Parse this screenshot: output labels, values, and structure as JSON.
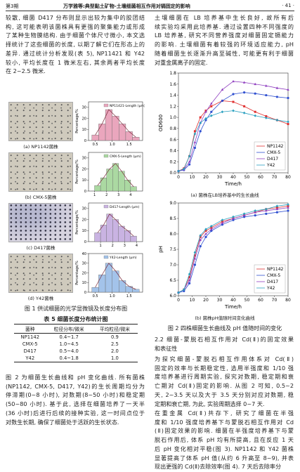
{
  "header": {
    "issue": "第3期",
    "running_title": "万学雅等:典型黏土矿物-土壤细菌相互作用对镉固定的影响",
    "page": "· 41 ·"
  },
  "left_text": {
    "paragraph_1": [
      "较散, 细菌 D417 分布则显示出较为集中的胶团结",
      "构, 这可能表明该菌株具有更强的聚集能力或形成",
      "了某种生物膜结构. 由于细菌个体尺寸微小, 本文选",
      "择统计了这些细菌的长度, 以期了解它们在形态上的",
      "差异. 通过统计分析发现(表 5), NP11421 和 Y42",
      "较小, 平均长度在 1 微米左右, 其余两者平均长度",
      "在 2~2.5 微米."
    ],
    "paragraph_2": [
      "图 2 为细菌生长曲线和 pH 变化曲线. 所有菌株",
      "(NP1142, CMX-5, D417, Y42)的生长周期均分为",
      "停滞期(0~8 小时), 对数期(8~50 小时)和稳定期",
      "(50~80 小时). 基于此, 选择在细菌培养了一天半",
      "(36 小时)后进行后续的接种实验, 这一时间点位于",
      "对数生长期, 确保了细菌处于活跃的生长状态."
    ]
  },
  "figure_1": {
    "panel_captions": [
      "(a) NP1142菌株",
      "(b) CMX-5菌株",
      "(c) D417菌株",
      "(d) Y42菌株"
    ],
    "caption": "图 1   供试细菌的光学显微镜及长度分布图"
  },
  "table": {
    "title": "表 5   细菌长度分布统计图",
    "header": [
      "菌种",
      "粒径分布/微米",
      "平均粒径/微米"
    ],
    "rows": [
      [
        "NP1142",
        "0.4~1.7",
        "0.9"
      ],
      [
        "CMX-5",
        "1.0~4.5",
        "2.5"
      ],
      [
        "D417",
        "0.5~4.0",
        "2.0"
      ],
      [
        "Y42",
        "0.4~1.8",
        "1.0"
      ]
    ]
  },
  "right_text": {
    "paragraph_1": [
      "土壤细菌在 LB 培养基中生长良好, 故所有后",
      "续实验均采用此培养基. 通过设置四种不同强度的",
      "LB 培养基, 研究不同营养强度对细菌固定镉能力",
      "的影响. 土壤细菌有着较强的环境适应能力, pH",
      "随着细菌生长逐渐升高至碱性, 可能更有利于细菌",
      "对重金属离子的固定."
    ],
    "section_heading": [
      "2.2   细菌-蒙脱石相互作用对 Cd(Ⅱ)的固定效果",
      "和表征性"
    ],
    "paragraph_2": [
      "为探究细菌-蒙脱石相互作用体系对 Cd(Ⅱ)",
      "固定的效率与长期稳定性, 选用半强度和 1/10 强",
      "度培养基进行周期实验, 探究对数期, 稳定期和衰",
      "亡期对 Cd(Ⅱ)固定的影响. 从图 2 可知, 0.5~2",
      "天, 2~3.5 天以及大于 3.5 天分别对应对数期, 稳",
      "定期和衰亡期, 为此, 实验周期选择 0~7 天."
    ],
    "paragraph_3": [
      "在重金属 Cd(Ⅱ)共存下, 研究了细菌在半强",
      "度和 1/10 强度培养基下与蒙脱石相互作用对 Cd",
      "(Ⅱ)固定效果的影响. 细菌在半强度培养基下与蒙",
      "脱石作用后, 体系 pH 均有所提高, 且在反应 1 天",
      "后 pH 变化相对平稳(图 3). NP1142 和 Y42 菌株",
      "显著提高了体系 pH 值(从约 6 升高至 8~9), 并表",
      "现出更强的 Cd(Ⅱ)去除效率(图 4). 7 天后去除率分"
    ]
  },
  "figure_2": {
    "panel_captions": [
      "(a) 菌株在LB培养基中的生长曲线",
      "(b) 菌株pH值随时间变化曲线"
    ],
    "caption": "图 2   四株细菌生长曲线及 pH 值随时间的变化"
  },
  "chart_data": [
    {
      "type": "histogram",
      "y_label": "Percentage/%",
      "bins": [
        0.4,
        0.6,
        0.8,
        1.0,
        1.2,
        1.4,
        1.6,
        1.8
      ],
      "series": [
        {
          "name": "NP11421-Length (μm)",
          "color": "#eaa6bd",
          "values": [
            5,
            15,
            28,
            22,
            15,
            8,
            3
          ]
        }
      ],
      "xlim": [
        0.3,
        1.9
      ],
      "xticks": [
        0.5,
        {
          "value": 1,
          "label": "1.0"
        },
        1.5
      ],
      "ylim": [
        0,
        35
      ],
      "yticks": [
        0,
        10,
        20,
        30
      ]
    },
    {
      "type": "histogram",
      "y_label": "Percentage/%",
      "bins": [
        1,
        1.5,
        2,
        2.5,
        3,
        3.5,
        4,
        4.5
      ],
      "series": [
        {
          "name": "CMX-5-Length (μm)",
          "color": "#abd9a2",
          "values": [
            5,
            12,
            20,
            25,
            18,
            10,
            4
          ]
        }
      ],
      "xlim": [
        0.5,
        5
      ],
      "xticks": [
        1,
        2,
        3,
        4
      ],
      "ylim": [
        0,
        35
      ],
      "yticks": [
        0,
        10,
        20,
        30
      ]
    },
    {
      "type": "histogram",
      "y_label": "Percentage/%",
      "bins": [
        0.5,
        1,
        1.5,
        2,
        2.5,
        3,
        3.5,
        4
      ],
      "series": [
        {
          "name": "D417-Length (μm)",
          "color": "#c9b3e2",
          "values": [
            8,
            15,
            25,
            20,
            14,
            10,
            5
          ]
        }
      ],
      "xlim": [
        0,
        4.5
      ],
      "xticks": [
        1,
        2,
        3,
        4
      ],
      "ylim": [
        0,
        35
      ],
      "yticks": [
        0,
        10,
        20,
        30
      ]
    },
    {
      "type": "histogram",
      "y_label": "Percentage/%",
      "bins": [
        0.4,
        0.6,
        0.8,
        1.0,
        1.2,
        1.4,
        1.6,
        1.8
      ],
      "series": [
        {
          "name": "Y42-Length (μm)",
          "color": "#a3c3ea",
          "values": [
            5,
            18,
            30,
            22,
            12,
            6,
            3
          ]
        }
      ],
      "xlim": [
        0.3,
        1.9
      ],
      "xticks": [
        0.5,
        {
          "value": 1,
          "label": "1.0"
        },
        1.5
      ],
      "ylim": [
        0,
        40
      ],
      "yticks": [
        0,
        10,
        20,
        30,
        40
      ]
    },
    {
      "type": "line",
      "x_label": "Time/h",
      "y_label": "OD600",
      "legend": "lower right",
      "x": [
        0,
        4,
        8,
        12,
        16,
        20,
        24,
        32,
        40,
        48,
        56,
        64,
        72,
        80
      ],
      "series": [
        {
          "name": "NP1142",
          "color": "#e03030",
          "values": [
            0.03,
            0.08,
            0.3,
            0.75,
            1.0,
            1.12,
            1.2,
            1.3,
            1.28,
            1.2,
            1.1,
            1.02,
            0.95,
            0.88
          ]
        },
        {
          "name": "CMX-5",
          "color": "#3050d0",
          "values": [
            0.03,
            0.05,
            0.15,
            0.45,
            0.75,
            0.95,
            1.1,
            1.3,
            1.42,
            1.45,
            1.43,
            1.4,
            1.37,
            1.35
          ]
        },
        {
          "name": "D417",
          "color": "#9040c0",
          "values": [
            0.03,
            0.06,
            0.2,
            0.55,
            0.9,
            1.1,
            1.25,
            1.5,
            1.65,
            1.63,
            1.6,
            1.57,
            1.53,
            1.5
          ]
        },
        {
          "name": "Y42",
          "color": "#2aa0c0",
          "values": [
            0.03,
            0.07,
            0.3,
            0.7,
            0.9,
            0.98,
            1.03,
            1.1,
            1.12,
            1.08,
            1.03,
            0.99,
            0.95,
            0.92
          ]
        }
      ],
      "xlim": [
        0,
        80
      ],
      "xticks": [
        0,
        10,
        20,
        30,
        40,
        50,
        60,
        70,
        80
      ],
      "ylim": [
        0,
        1.8
      ],
      "yticks": [
        {
          "value": 0,
          "label": "0.0"
        },
        0.2,
        0.4,
        0.6,
        0.8,
        {
          "value": 1,
          "label": "1.0"
        },
        1.2,
        1.4,
        1.6,
        1.8
      ]
    },
    {
      "type": "line",
      "x_label": "Time/h",
      "y_label": "pH",
      "legend": "lower right",
      "x": [
        0,
        4,
        8,
        12,
        16,
        20,
        24,
        32,
        40,
        48,
        56,
        64,
        72,
        80
      ],
      "series": [
        {
          "name": "NP1142",
          "color": "#e03030",
          "values": [
            6.1,
            6.2,
            6.6,
            7.3,
            7.9,
            8.1,
            8.2,
            8.4,
            8.5,
            8.6,
            8.7,
            8.8,
            8.85,
            8.9
          ]
        },
        {
          "name": "CMX-5",
          "color": "#3050d0",
          "values": [
            6.1,
            6.15,
            6.4,
            7.0,
            7.6,
            7.9,
            8.1,
            8.3,
            8.45,
            8.55,
            8.6,
            8.65,
            8.7,
            8.75
          ]
        },
        {
          "name": "D417",
          "color": "#9040c0",
          "values": [
            6.1,
            6.2,
            6.5,
            7.2,
            7.8,
            8.0,
            8.15,
            8.35,
            8.5,
            8.6,
            8.7,
            8.75,
            8.8,
            8.85
          ]
        },
        {
          "name": "Y42",
          "color": "#2aa0c0",
          "values": [
            6.1,
            6.2,
            6.7,
            7.4,
            7.95,
            8.15,
            8.25,
            8.45,
            8.55,
            8.65,
            8.75,
            8.8,
            8.9,
            8.95
          ]
        }
      ],
      "xlim": [
        0,
        80
      ],
      "xticks": [
        0,
        10,
        20,
        30,
        40,
        50,
        60,
        70,
        80
      ],
      "ylim": [
        6,
        9
      ],
      "yticks": [
        {
          "value": 6,
          "label": "6.0"
        },
        6.5,
        {
          "value": 7,
          "label": "7.0"
        },
        7.5,
        {
          "value": 8,
          "label": "8.0"
        },
        8.5,
        {
          "value": 9,
          "label": "9.0"
        }
      ]
    }
  ]
}
